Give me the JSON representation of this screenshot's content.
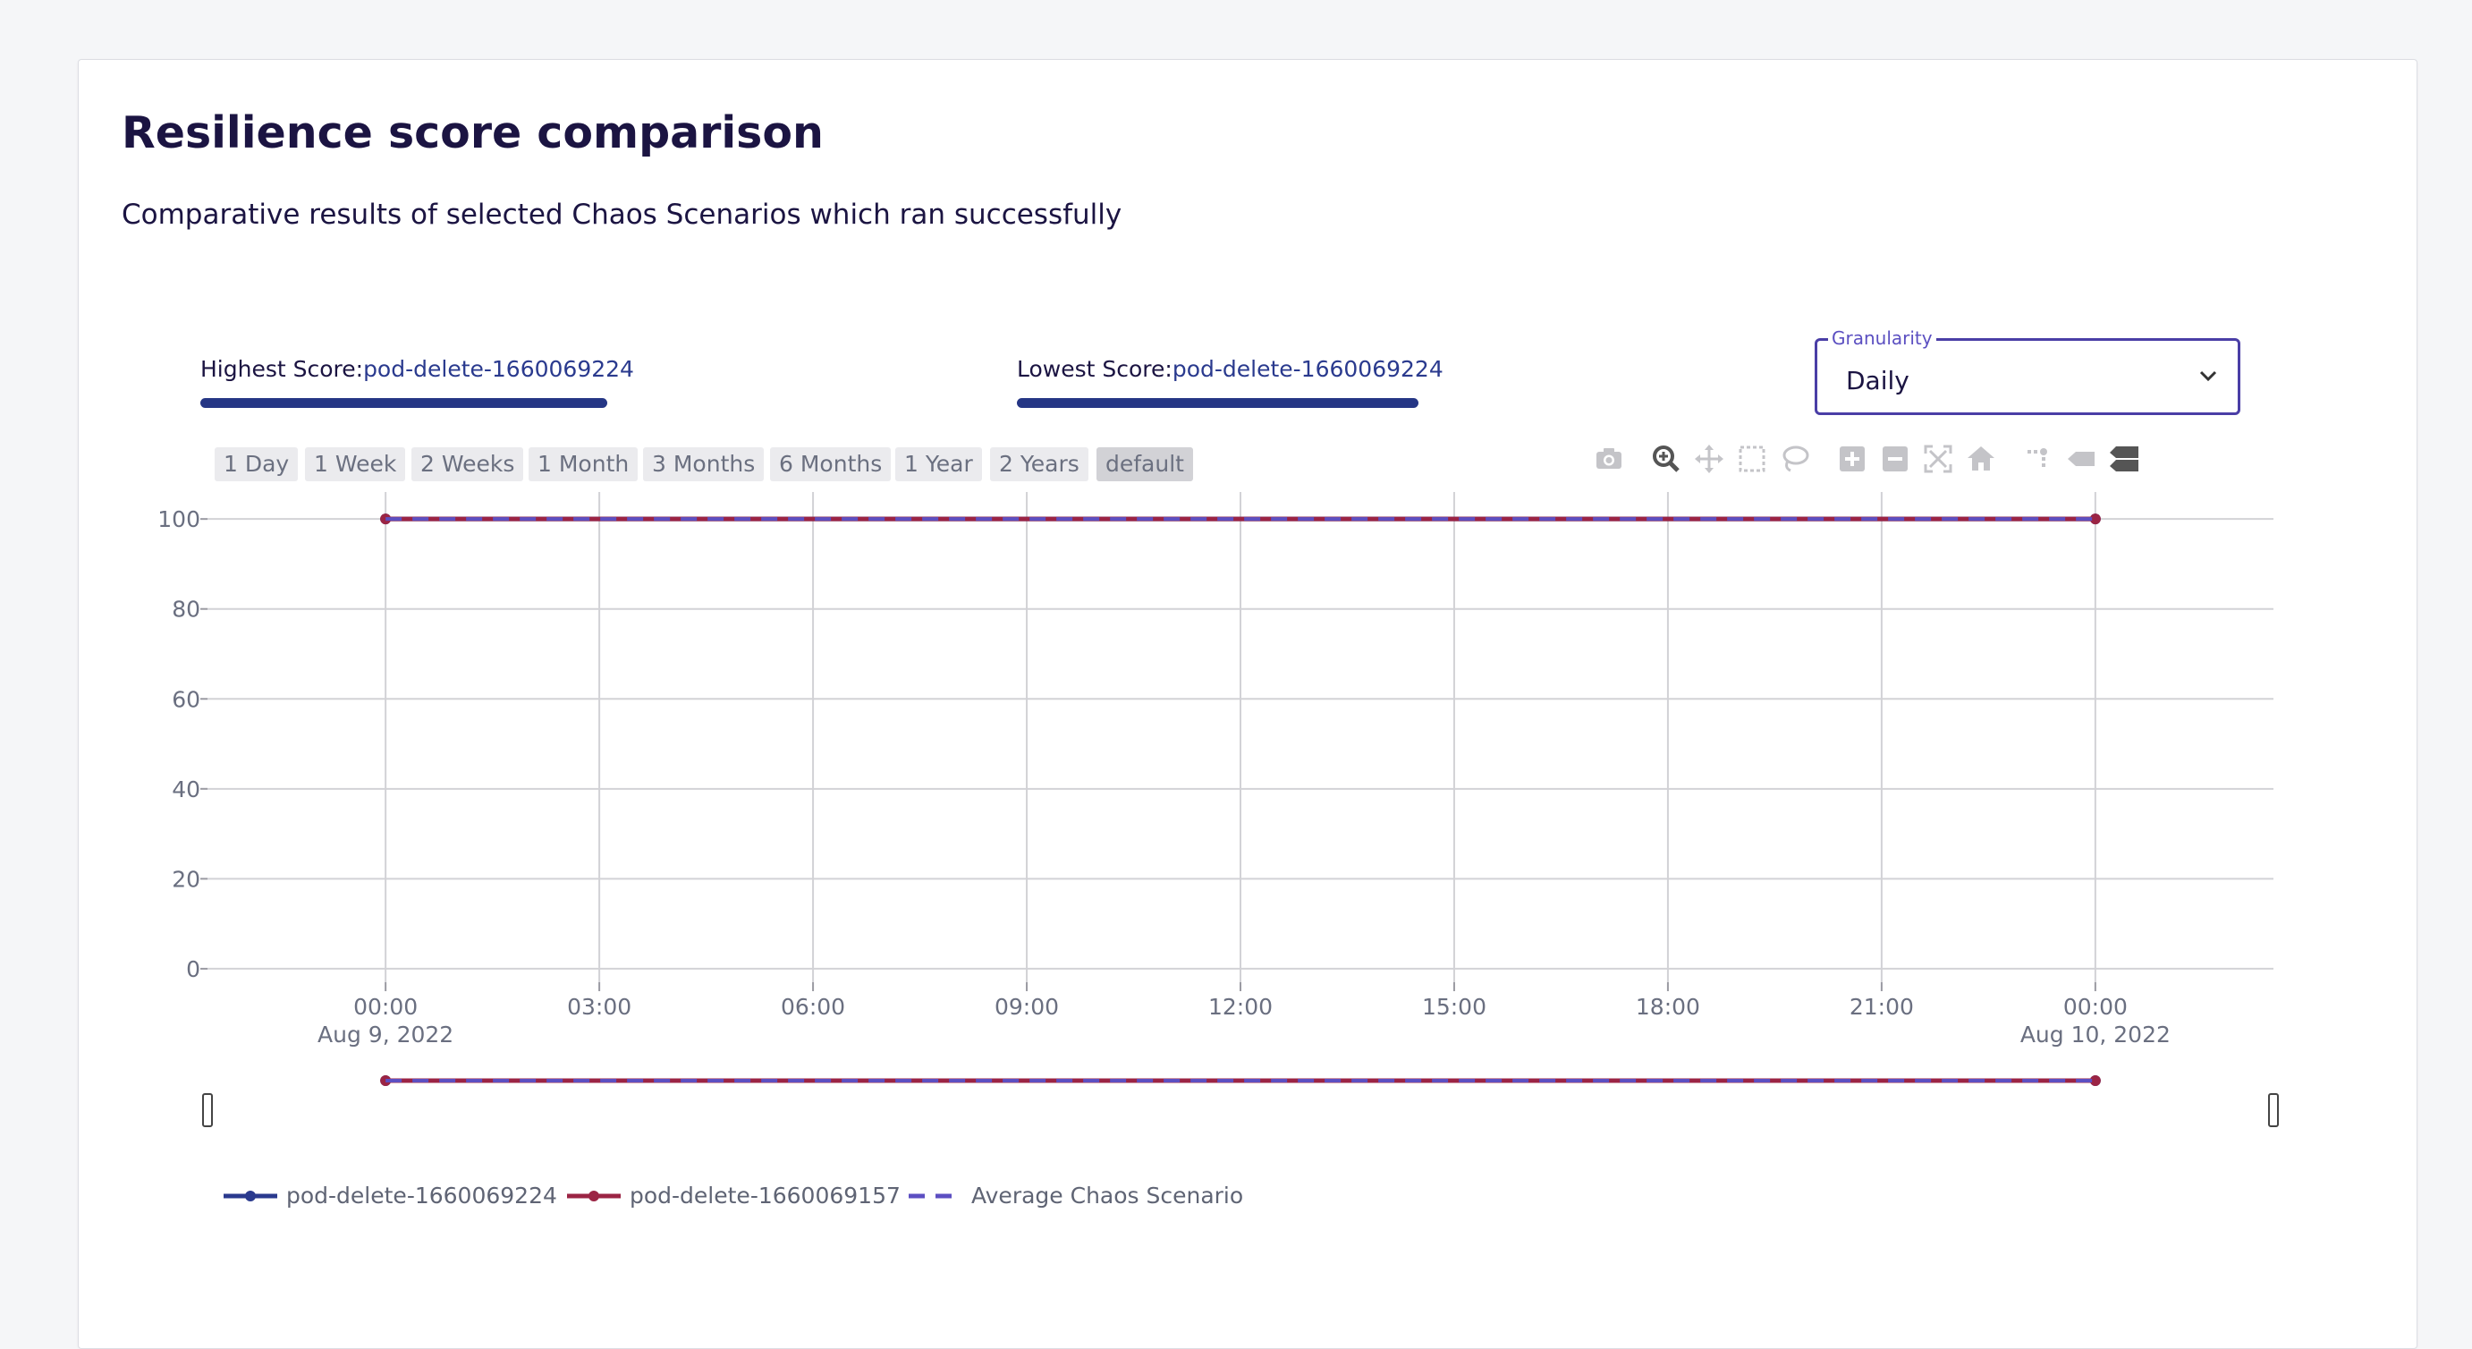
{
  "page": {
    "title": "Resilience score comparison",
    "subtitle": "Comparative results of selected Chaos Scenarios which ran successfully"
  },
  "scores": {
    "highest_label": "Highest Score:",
    "highest_value": "pod-delete-1660069224",
    "lowest_label": "Lowest Score:",
    "lowest_value": "pod-delete-1660069224"
  },
  "granularity": {
    "label": "Granularity",
    "value": "Daily"
  },
  "range_buttons": [
    "1 Day",
    "1 Week",
    "2 Weeks",
    "1 Month",
    "3 Months",
    "6 Months",
    "1 Year",
    "2 Years",
    "default"
  ],
  "modebar_icons": [
    "camera-icon",
    "zoom-icon",
    "pan-icon",
    "box-select-icon",
    "lasso-icon",
    "zoom-in-icon",
    "zoom-out-icon",
    "autoscale-icon",
    "reset-axes-icon",
    "spike-lines-icon",
    "hover-closest-icon",
    "hover-compare-icon"
  ],
  "colors": {
    "accent": "#4a3ea6",
    "series_1": "#2a3a8e",
    "series_2": "#9b2444",
    "average": "#5c4fc2"
  },
  "chart_data": {
    "type": "line",
    "x_ticks": [
      {
        "time": "00:00",
        "date": "Aug 9, 2022"
      },
      {
        "time": "03:00",
        "date": ""
      },
      {
        "time": "06:00",
        "date": ""
      },
      {
        "time": "09:00",
        "date": ""
      },
      {
        "time": "12:00",
        "date": ""
      },
      {
        "time": "15:00",
        "date": ""
      },
      {
        "time": "18:00",
        "date": ""
      },
      {
        "time": "21:00",
        "date": ""
      },
      {
        "time": "00:00",
        "date": "Aug 10, 2022"
      }
    ],
    "y_ticks": [
      0,
      20,
      40,
      60,
      80,
      100
    ],
    "ylim": [
      -3,
      106
    ],
    "xlim": [
      "2022-08-08T21:30",
      "2022-08-10T02:30"
    ],
    "series": [
      {
        "name": "pod-delete-1660069224",
        "color": "#2a3a8e",
        "style": "solid-markers",
        "x": [
          "2022-08-09T00:00",
          "2022-08-10T00:00"
        ],
        "y": [
          100,
          100
        ]
      },
      {
        "name": "pod-delete-1660069157",
        "color": "#9b2444",
        "style": "solid-markers",
        "x": [
          "2022-08-09T00:00",
          "2022-08-10T00:00"
        ],
        "y": [
          100,
          100
        ]
      },
      {
        "name": "Average Chaos Scenario",
        "color": "#5c4fc2",
        "style": "dash",
        "x": [
          "2022-08-09T00:00",
          "2022-08-10T00:00"
        ],
        "y": [
          100,
          100
        ]
      }
    ],
    "grid": true,
    "legend_position": "bottom-left",
    "range_slider": true
  }
}
